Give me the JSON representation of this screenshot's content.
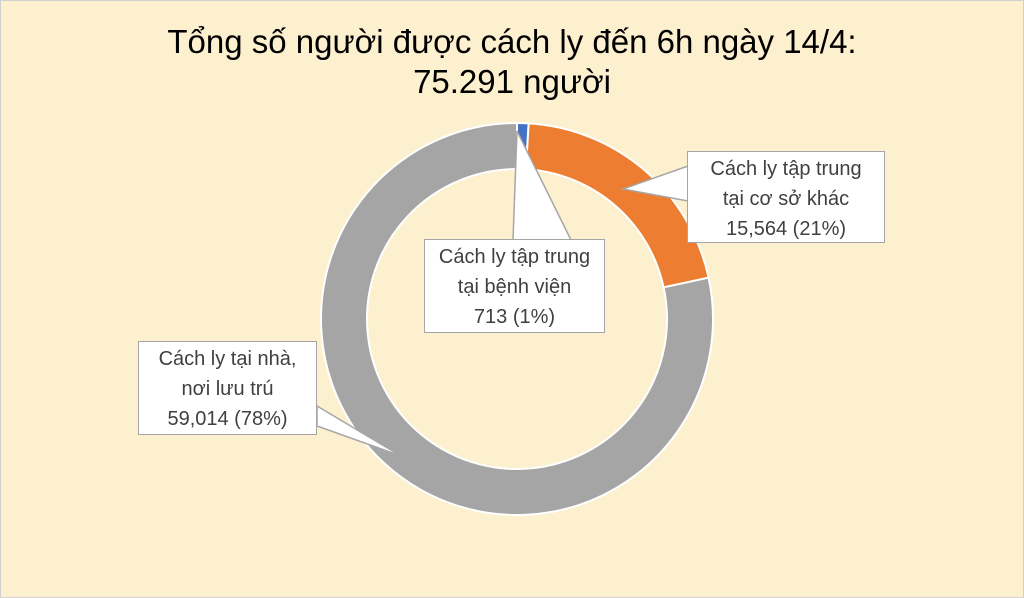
{
  "chart_data": {
    "type": "pie",
    "donut": true,
    "title_line1": "Tổng số người được cách ly đến 6h ngày 14/4:",
    "title_line2": "75.291 người",
    "slices": [
      {
        "name": "Cách ly tập trung tại bệnh viện",
        "label_lines": [
          "Cách ly tập trung",
          "tại bệnh viện",
          "713  (1%)"
        ],
        "value": 713,
        "percent": 1,
        "color": "#4472c4"
      },
      {
        "name": "Cách ly tập trung tại cơ sở khác",
        "label_lines": [
          "Cách ly tập trung",
          "tại cơ sở khác",
          "15,564 (21%)"
        ],
        "value": 15564,
        "percent": 21,
        "color": "#ed7d31"
      },
      {
        "name": "Cách ly tại nhà, nơi lưu trú",
        "label_lines": [
          "Cách ly tại nhà,",
          "nơi lưu trú",
          "59,014 (78%)"
        ],
        "value": 59014,
        "percent": 78,
        "color": "#a5a5a5"
      }
    ],
    "background": "#fdf0cf"
  }
}
